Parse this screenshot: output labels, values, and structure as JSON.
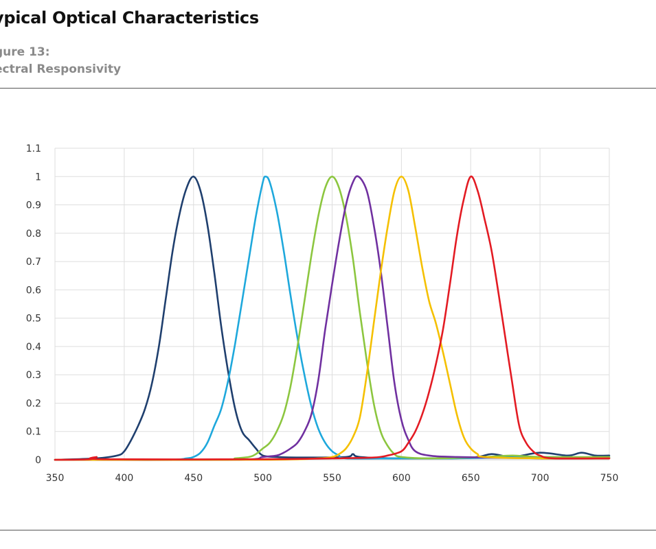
{
  "heading": {
    "title": "ypical Optical Characteristics",
    "figure_number": "gure 13:",
    "figure_caption": "ectral Responsivity"
  },
  "chart_data": {
    "type": "line",
    "title": "",
    "xlabel": "",
    "ylabel": "",
    "xlim": [
      350,
      750
    ],
    "ylim": [
      0,
      1.1
    ],
    "x_ticks": [
      350,
      400,
      450,
      500,
      550,
      600,
      650,
      700,
      750
    ],
    "y_ticks": [
      0,
      0.1,
      0.2,
      0.3,
      0.4,
      0.5,
      0.6,
      0.7,
      0.8,
      0.9,
      1,
      1.1
    ],
    "grid": true,
    "legend": "none",
    "series": [
      {
        "color": "#1f3f6e",
        "points": [
          [
            350,
            0.0
          ],
          [
            380,
            0.005
          ],
          [
            395,
            0.015
          ],
          [
            400,
            0.03
          ],
          [
            405,
            0.07
          ],
          [
            410,
            0.12
          ],
          [
            415,
            0.18
          ],
          [
            420,
            0.27
          ],
          [
            425,
            0.4
          ],
          [
            430,
            0.57
          ],
          [
            435,
            0.74
          ],
          [
            440,
            0.87
          ],
          [
            445,
            0.96
          ],
          [
            450,
            1.0
          ],
          [
            455,
            0.95
          ],
          [
            460,
            0.83
          ],
          [
            465,
            0.66
          ],
          [
            470,
            0.47
          ],
          [
            475,
            0.31
          ],
          [
            480,
            0.18
          ],
          [
            485,
            0.1
          ],
          [
            490,
            0.07
          ],
          [
            495,
            0.04
          ],
          [
            500,
            0.015
          ],
          [
            510,
            0.01
          ],
          [
            530,
            0.008
          ],
          [
            560,
            0.01
          ],
          [
            565,
            0.02
          ],
          [
            570,
            0.01
          ],
          [
            600,
            0.005
          ],
          [
            650,
            0.008
          ],
          [
            665,
            0.02
          ],
          [
            680,
            0.01
          ],
          [
            700,
            0.025
          ],
          [
            720,
            0.015
          ],
          [
            730,
            0.025
          ],
          [
            740,
            0.015
          ],
          [
            750,
            0.015
          ]
        ]
      },
      {
        "color": "#1ea8dc",
        "points": [
          [
            350,
            0.0
          ],
          [
            430,
            0.0
          ],
          [
            445,
            0.005
          ],
          [
            450,
            0.01
          ],
          [
            455,
            0.025
          ],
          [
            460,
            0.06
          ],
          [
            465,
            0.12
          ],
          [
            470,
            0.18
          ],
          [
            475,
            0.28
          ],
          [
            480,
            0.41
          ],
          [
            485,
            0.56
          ],
          [
            490,
            0.71
          ],
          [
            495,
            0.86
          ],
          [
            500,
            0.98
          ],
          [
            502,
            1.0
          ],
          [
            505,
            0.98
          ],
          [
            510,
            0.88
          ],
          [
            515,
            0.74
          ],
          [
            520,
            0.58
          ],
          [
            525,
            0.43
          ],
          [
            530,
            0.3
          ],
          [
            535,
            0.19
          ],
          [
            540,
            0.11
          ],
          [
            545,
            0.06
          ],
          [
            550,
            0.03
          ],
          [
            555,
            0.015
          ],
          [
            560,
            0.005
          ],
          [
            600,
            0.005
          ],
          [
            640,
            0.005
          ],
          [
            700,
            0.01
          ],
          [
            750,
            0.008
          ]
        ]
      },
      {
        "color": "#8cc63f",
        "points": [
          [
            350,
            0.0
          ],
          [
            470,
            0.0
          ],
          [
            480,
            0.005
          ],
          [
            490,
            0.01
          ],
          [
            495,
            0.02
          ],
          [
            500,
            0.04
          ],
          [
            505,
            0.06
          ],
          [
            510,
            0.1
          ],
          [
            515,
            0.16
          ],
          [
            520,
            0.26
          ],
          [
            525,
            0.4
          ],
          [
            530,
            0.56
          ],
          [
            535,
            0.72
          ],
          [
            540,
            0.86
          ],
          [
            545,
            0.96
          ],
          [
            550,
            1.0
          ],
          [
            555,
            0.96
          ],
          [
            560,
            0.86
          ],
          [
            565,
            0.71
          ],
          [
            570,
            0.52
          ],
          [
            575,
            0.35
          ],
          [
            580,
            0.2
          ],
          [
            585,
            0.1
          ],
          [
            590,
            0.05
          ],
          [
            595,
            0.02
          ],
          [
            600,
            0.01
          ],
          [
            620,
            0.005
          ],
          [
            660,
            0.01
          ],
          [
            680,
            0.015
          ],
          [
            700,
            0.01
          ],
          [
            750,
            0.01
          ]
        ]
      },
      {
        "color": "#7030a0",
        "points": [
          [
            350,
            0.0
          ],
          [
            480,
            0.0
          ],
          [
            500,
            0.01
          ],
          [
            510,
            0.015
          ],
          [
            515,
            0.025
          ],
          [
            520,
            0.04
          ],
          [
            525,
            0.06
          ],
          [
            530,
            0.1
          ],
          [
            535,
            0.16
          ],
          [
            540,
            0.28
          ],
          [
            545,
            0.46
          ],
          [
            550,
            0.62
          ],
          [
            555,
            0.77
          ],
          [
            560,
            0.9
          ],
          [
            565,
            0.98
          ],
          [
            569,
            1.0
          ],
          [
            575,
            0.95
          ],
          [
            580,
            0.83
          ],
          [
            585,
            0.67
          ],
          [
            590,
            0.47
          ],
          [
            595,
            0.27
          ],
          [
            600,
            0.14
          ],
          [
            605,
            0.07
          ],
          [
            610,
            0.03
          ],
          [
            620,
            0.015
          ],
          [
            640,
            0.01
          ],
          [
            700,
            0.005
          ],
          [
            750,
            0.005
          ]
        ]
      },
      {
        "color": "#f5c000",
        "points": [
          [
            350,
            0.0
          ],
          [
            500,
            0.0
          ],
          [
            540,
            0.005
          ],
          [
            550,
            0.01
          ],
          [
            555,
            0.02
          ],
          [
            560,
            0.04
          ],
          [
            565,
            0.08
          ],
          [
            570,
            0.15
          ],
          [
            575,
            0.3
          ],
          [
            580,
            0.48
          ],
          [
            585,
            0.66
          ],
          [
            590,
            0.82
          ],
          [
            595,
            0.95
          ],
          [
            600,
            1.0
          ],
          [
            605,
            0.95
          ],
          [
            610,
            0.82
          ],
          [
            615,
            0.68
          ],
          [
            620,
            0.56
          ],
          [
            625,
            0.48
          ],
          [
            630,
            0.38
          ],
          [
            635,
            0.27
          ],
          [
            640,
            0.16
          ],
          [
            645,
            0.08
          ],
          [
            650,
            0.04
          ],
          [
            655,
            0.02
          ],
          [
            660,
            0.01
          ],
          [
            700,
            0.005
          ],
          [
            750,
            0.005
          ]
        ]
      },
      {
        "color": "#e31b23",
        "points": [
          [
            350,
            0.0
          ],
          [
            375,
            0.002
          ],
          [
            380,
            0.01
          ],
          [
            385,
            0.002
          ],
          [
            500,
            0.002
          ],
          [
            550,
            0.005
          ],
          [
            580,
            0.008
          ],
          [
            590,
            0.015
          ],
          [
            600,
            0.03
          ],
          [
            605,
            0.06
          ],
          [
            610,
            0.1
          ],
          [
            615,
            0.16
          ],
          [
            620,
            0.24
          ],
          [
            625,
            0.34
          ],
          [
            630,
            0.46
          ],
          [
            635,
            0.62
          ],
          [
            640,
            0.79
          ],
          [
            645,
            0.92
          ],
          [
            650,
            1.0
          ],
          [
            655,
            0.95
          ],
          [
            660,
            0.85
          ],
          [
            665,
            0.74
          ],
          [
            670,
            0.59
          ],
          [
            675,
            0.43
          ],
          [
            680,
            0.27
          ],
          [
            685,
            0.12
          ],
          [
            690,
            0.06
          ],
          [
            695,
            0.03
          ],
          [
            700,
            0.015
          ],
          [
            710,
            0.005
          ],
          [
            750,
            0.005
          ]
        ]
      }
    ]
  }
}
